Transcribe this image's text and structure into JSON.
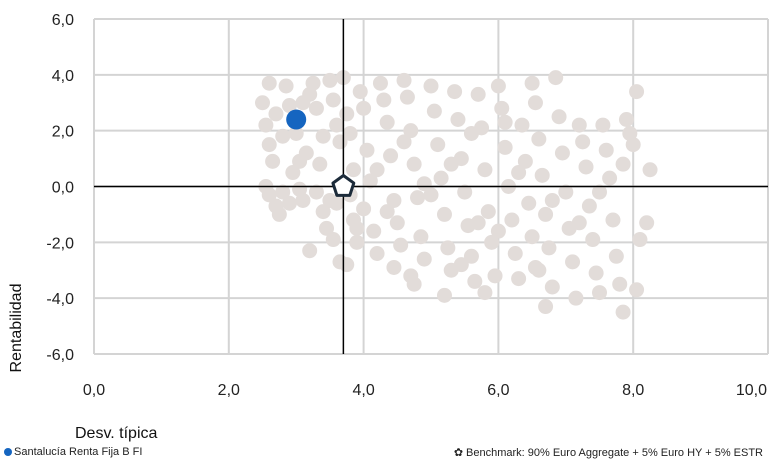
{
  "chart_data": {
    "type": "scatter",
    "xlabel": "Desv. típica",
    "ylabel": "Rentabilidad",
    "xlim": [
      0,
      10
    ],
    "ylim": [
      -6,
      6
    ],
    "x_ticks": [
      "0,0",
      "2,0",
      "4,0",
      "6,0",
      "8,0",
      "10,0"
    ],
    "y_ticks": [
      "6,0",
      "4,0",
      "2,0",
      "0,0",
      "-2,0",
      "-4,0",
      "-6,0"
    ],
    "grid": true,
    "crosshair": {
      "x": 3.7,
      "y": 0.0
    },
    "colors": {
      "peers": "#e2dcd9",
      "fund": "#1565c0",
      "benchmark": "#1c2b3a",
      "grid": "#d4d4d4",
      "axis": "#000000"
    },
    "series": [
      {
        "name": "Santalucía Renta Fija B FI",
        "role": "fund",
        "points": [
          [
            3.0,
            2.4
          ]
        ]
      },
      {
        "name": "Benchmark: 90% Euro Aggregate + 5% Euro HY + 5% ESTR",
        "role": "benchmark",
        "points": [
          [
            3.7,
            0.0
          ]
        ]
      },
      {
        "role": "peers",
        "points": [
          [
            2.5,
            3.0
          ],
          [
            2.55,
            2.2
          ],
          [
            2.6,
            1.5
          ],
          [
            2.65,
            0.9
          ],
          [
            2.55,
            0.0
          ],
          [
            2.6,
            -0.3
          ],
          [
            2.7,
            -0.7
          ],
          [
            2.75,
            -1.0
          ],
          [
            2.6,
            3.7
          ],
          [
            2.85,
            3.6
          ],
          [
            2.9,
            2.9
          ],
          [
            2.8,
            1.8
          ],
          [
            2.95,
            0.5
          ],
          [
            3.05,
            -0.1
          ],
          [
            3.1,
            -0.5
          ],
          [
            3.15,
            1.2
          ],
          [
            3.2,
            3.3
          ],
          [
            3.25,
            3.7
          ],
          [
            3.3,
            2.8
          ],
          [
            3.35,
            0.8
          ],
          [
            3.4,
            -0.9
          ],
          [
            3.45,
            -1.5
          ],
          [
            3.2,
            -2.3
          ],
          [
            3.5,
            3.8
          ],
          [
            3.55,
            3.1
          ],
          [
            3.6,
            2.2
          ],
          [
            3.65,
            1.6
          ],
          [
            3.6,
            -0.6
          ],
          [
            3.55,
            -1.9
          ],
          [
            3.65,
            -2.7
          ],
          [
            3.7,
            3.9
          ],
          [
            3.75,
            2.6
          ],
          [
            3.8,
            1.9
          ],
          [
            3.85,
            0.6
          ],
          [
            3.8,
            -0.3
          ],
          [
            3.85,
            -1.2
          ],
          [
            3.9,
            -2.0
          ],
          [
            3.75,
            -2.8
          ],
          [
            3.95,
            3.4
          ],
          [
            4.0,
            2.8
          ],
          [
            4.05,
            1.3
          ],
          [
            4.1,
            0.2
          ],
          [
            4.0,
            -0.8
          ],
          [
            4.15,
            -1.6
          ],
          [
            4.2,
            -2.4
          ],
          [
            4.25,
            3.7
          ],
          [
            4.3,
            3.1
          ],
          [
            4.35,
            2.3
          ],
          [
            4.4,
            1.1
          ],
          [
            4.45,
            -0.5
          ],
          [
            4.5,
            -1.3
          ],
          [
            4.55,
            -2.1
          ],
          [
            4.45,
            -2.9
          ],
          [
            4.6,
            3.8
          ],
          [
            4.65,
            3.2
          ],
          [
            4.7,
            2.0
          ],
          [
            4.75,
            0.8
          ],
          [
            4.8,
            -0.4
          ],
          [
            4.85,
            -1.8
          ],
          [
            4.9,
            -2.6
          ],
          [
            4.7,
            -3.2
          ],
          [
            4.75,
            -3.5
          ],
          [
            5.0,
            3.6
          ],
          [
            5.05,
            2.7
          ],
          [
            5.1,
            1.5
          ],
          [
            5.15,
            0.3
          ],
          [
            5.2,
            -1.0
          ],
          [
            5.25,
            -2.2
          ],
          [
            5.3,
            -3.0
          ],
          [
            5.2,
            -3.9
          ],
          [
            5.35,
            3.4
          ],
          [
            5.4,
            2.4
          ],
          [
            5.45,
            1.0
          ],
          [
            5.5,
            -0.2
          ],
          [
            5.55,
            -1.4
          ],
          [
            5.6,
            -2.5
          ],
          [
            5.65,
            -3.4
          ],
          [
            5.7,
            3.3
          ],
          [
            5.75,
            2.1
          ],
          [
            5.8,
            0.6
          ],
          [
            5.85,
            -0.9
          ],
          [
            5.9,
            -2.0
          ],
          [
            5.95,
            -3.2
          ],
          [
            5.8,
            -3.8
          ],
          [
            6.0,
            3.6
          ],
          [
            6.05,
            2.8
          ],
          [
            6.1,
            1.4
          ],
          [
            6.15,
            0.0
          ],
          [
            6.2,
            -1.2
          ],
          [
            6.25,
            -2.4
          ],
          [
            6.3,
            -3.3
          ],
          [
            6.35,
            2.2
          ],
          [
            6.4,
            0.9
          ],
          [
            6.45,
            -0.6
          ],
          [
            6.5,
            -1.8
          ],
          [
            6.55,
            -2.9
          ],
          [
            6.5,
            3.7
          ],
          [
            6.55,
            3.0
          ],
          [
            6.6,
            1.7
          ],
          [
            6.65,
            0.4
          ],
          [
            6.7,
            -1.0
          ],
          [
            6.75,
            -2.2
          ],
          [
            6.8,
            -3.6
          ],
          [
            6.7,
            -4.3
          ],
          [
            6.85,
            3.9
          ],
          [
            6.9,
            2.5
          ],
          [
            6.95,
            1.2
          ],
          [
            7.0,
            -0.2
          ],
          [
            7.05,
            -1.5
          ],
          [
            7.1,
            -2.7
          ],
          [
            7.15,
            -4.0
          ],
          [
            7.2,
            2.2
          ],
          [
            7.25,
            1.6
          ],
          [
            7.3,
            0.7
          ],
          [
            7.35,
            -0.7
          ],
          [
            7.4,
            -1.9
          ],
          [
            7.45,
            -3.1
          ],
          [
            7.5,
            -3.8
          ],
          [
            7.55,
            2.2
          ],
          [
            7.6,
            1.3
          ],
          [
            7.65,
            0.3
          ],
          [
            7.7,
            -1.2
          ],
          [
            7.75,
            -2.5
          ],
          [
            7.8,
            -3.5
          ],
          [
            7.85,
            -4.5
          ],
          [
            7.9,
            2.4
          ],
          [
            7.95,
            1.9
          ],
          [
            8.0,
            1.5
          ],
          [
            7.85,
            0.8
          ],
          [
            8.05,
            3.4
          ],
          [
            8.1,
            -1.9
          ],
          [
            8.2,
            -1.3
          ],
          [
            8.25,
            0.6
          ],
          [
            8.05,
            -3.7
          ],
          [
            3.0,
            1.9
          ],
          [
            3.1,
            3.0
          ],
          [
            3.3,
            -0.2
          ],
          [
            3.4,
            1.8
          ],
          [
            3.5,
            -0.5
          ],
          [
            4.2,
            0.6
          ],
          [
            4.6,
            1.6
          ],
          [
            5.0,
            -0.3
          ],
          [
            5.3,
            0.8
          ],
          [
            5.6,
            1.9
          ],
          [
            6.0,
            -1.6
          ],
          [
            6.3,
            0.5
          ],
          [
            6.1,
            2.3
          ],
          [
            6.8,
            -0.5
          ],
          [
            7.2,
            -1.3
          ],
          [
            7.5,
            -0.2
          ],
          [
            2.7,
            2.6
          ],
          [
            2.8,
            -0.2
          ],
          [
            2.9,
            -0.6
          ],
          [
            3.05,
            0.9
          ],
          [
            3.9,
            -1.5
          ],
          [
            4.35,
            -0.9
          ],
          [
            4.9,
            0.1
          ],
          [
            5.45,
            -2.8
          ],
          [
            5.7,
            -1.3
          ],
          [
            6.6,
            -3.0
          ]
        ]
      }
    ]
  }
}
